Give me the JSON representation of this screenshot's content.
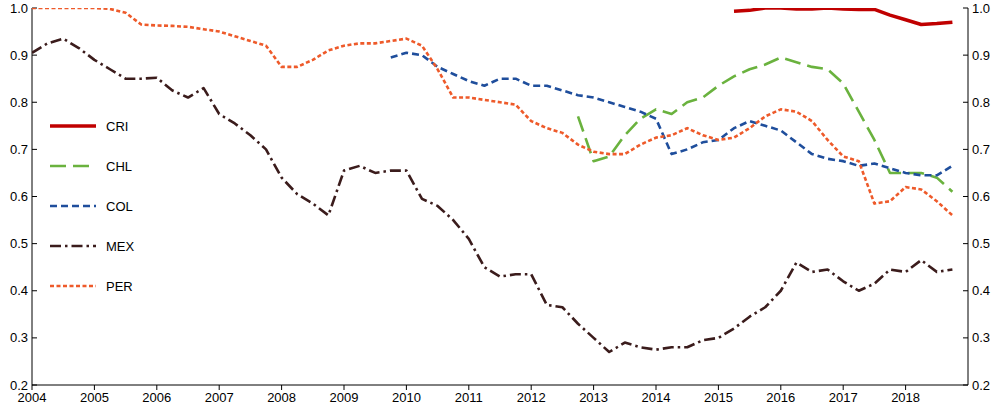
{
  "chart_data": {
    "type": "line",
    "x": [
      2004,
      2004.25,
      2004.5,
      2004.75,
      2005,
      2005.25,
      2005.5,
      2005.75,
      2006,
      2006.25,
      2006.5,
      2006.75,
      2007,
      2007.25,
      2007.5,
      2007.75,
      2008,
      2008.25,
      2008.5,
      2008.75,
      2009,
      2009.25,
      2009.5,
      2009.75,
      2010,
      2010.25,
      2010.5,
      2010.75,
      2011,
      2011.25,
      2011.5,
      2011.75,
      2012,
      2012.25,
      2012.5,
      2012.75,
      2013,
      2013.25,
      2013.5,
      2013.75,
      2014,
      2014.25,
      2014.5,
      2014.75,
      2015,
      2015.25,
      2015.5,
      2015.75,
      2016,
      2016.25,
      2016.5,
      2016.75,
      2017,
      2017.25,
      2017.5,
      2017.75,
      2018,
      2018.25,
      2018.5,
      2018.75
    ],
    "series": [
      {
        "name": "CRI",
        "color": "#c00000",
        "line_style": "solid",
        "values": [
          null,
          null,
          null,
          null,
          null,
          null,
          null,
          null,
          null,
          null,
          null,
          null,
          null,
          null,
          null,
          null,
          null,
          null,
          null,
          null,
          null,
          null,
          null,
          null,
          null,
          null,
          null,
          null,
          null,
          null,
          null,
          null,
          null,
          null,
          null,
          null,
          null,
          null,
          null,
          null,
          null,
          null,
          null,
          null,
          null,
          0.993,
          0.995,
          1,
          1,
          0.998,
          0.998,
          1,
          0.998,
          0.997,
          0.997,
          0.985,
          0.975,
          0.965,
          0.967,
          0.97
        ]
      },
      {
        "name": "CHL",
        "color": "#6ab23e",
        "line_style": "long-dash",
        "values": [
          null,
          null,
          null,
          null,
          null,
          null,
          null,
          null,
          null,
          null,
          null,
          null,
          null,
          null,
          null,
          null,
          null,
          null,
          null,
          null,
          null,
          null,
          null,
          null,
          null,
          null,
          null,
          null,
          null,
          null,
          null,
          null,
          null,
          null,
          null,
          0.77,
          0.675,
          0.685,
          0.73,
          0.765,
          0.785,
          0.775,
          0.8,
          0.81,
          0.835,
          0.855,
          0.87,
          0.88,
          0.895,
          0.885,
          0.875,
          0.87,
          0.84,
          0.78,
          0.72,
          0.65,
          0.65,
          0.65,
          0.64,
          0.61
        ]
      },
      {
        "name": "COL",
        "color": "#1f4e9c",
        "line_style": "dash",
        "values": [
          null,
          null,
          null,
          null,
          null,
          null,
          null,
          null,
          null,
          null,
          null,
          null,
          null,
          null,
          null,
          null,
          null,
          null,
          null,
          null,
          null,
          null,
          null,
          0.895,
          0.905,
          0.9,
          0.875,
          0.86,
          0.845,
          0.835,
          0.85,
          0.85,
          0.835,
          0.835,
          0.825,
          0.815,
          0.81,
          0.8,
          0.79,
          0.78,
          0.765,
          0.69,
          0.7,
          0.715,
          0.72,
          0.745,
          0.76,
          0.75,
          0.74,
          0.715,
          0.69,
          0.68,
          0.675,
          0.665,
          0.67,
          0.66,
          0.65,
          0.645,
          0.645,
          0.665
        ]
      },
      {
        "name": "MEX",
        "color": "#3b1c1c",
        "line_style": "dash-dot",
        "values": [
          0.905,
          0.925,
          0.935,
          0.915,
          0.89,
          0.87,
          0.85,
          0.85,
          0.852,
          0.825,
          0.81,
          0.83,
          0.775,
          0.755,
          0.73,
          0.7,
          0.64,
          0.605,
          0.585,
          0.56,
          0.655,
          0.665,
          0.65,
          0.655,
          0.655,
          0.595,
          0.58,
          0.55,
          0.51,
          0.45,
          0.43,
          0.435,
          0.435,
          0.37,
          0.365,
          0.33,
          0.3,
          0.27,
          0.29,
          0.28,
          0.275,
          0.28,
          0.28,
          0.295,
          0.3,
          0.32,
          0.345,
          0.365,
          0.4,
          0.46,
          0.44,
          0.445,
          0.42,
          0.4,
          0.415,
          0.445,
          0.44,
          0.465,
          0.44,
          0.445
        ]
      },
      {
        "name": "PER",
        "color": "#ee5a2a",
        "line_style": "short-dash",
        "values": [
          1,
          1,
          1,
          1,
          1,
          0.998,
          0.99,
          0.965,
          0.963,
          0.962,
          0.96,
          0.955,
          0.95,
          0.94,
          0.93,
          0.92,
          0.875,
          0.875,
          0.89,
          0.91,
          0.92,
          0.925,
          0.925,
          0.93,
          0.935,
          0.92,
          0.87,
          0.81,
          0.81,
          0.805,
          0.8,
          0.795,
          0.76,
          0.745,
          0.735,
          0.71,
          0.695,
          0.69,
          0.69,
          0.71,
          0.725,
          0.73,
          0.745,
          0.73,
          0.72,
          0.725,
          0.745,
          0.77,
          0.785,
          0.78,
          0.76,
          0.72,
          0.685,
          0.675,
          0.585,
          0.59,
          0.62,
          0.615,
          0.59,
          0.56
        ]
      }
    ],
    "xlim": [
      2004,
      2019
    ],
    "xticks": [
      2004,
      2005,
      2006,
      2007,
      2008,
      2009,
      2010,
      2011,
      2012,
      2013,
      2014,
      2015,
      2016,
      2017,
      2018
    ],
    "ylim": [
      0.2,
      1
    ],
    "yticks": [
      {
        "value": 1,
        "label": "1.0"
      },
      0.9,
      0.8,
      0.7,
      0.6,
      0.5,
      0.4,
      0.3,
      0.2
    ],
    "y2lim": [
      0.2,
      1
    ],
    "y2ticks": [
      {
        "value": 1,
        "label": "1.0"
      },
      0.9,
      0.8,
      0.7,
      0.6,
      0.5,
      0.4,
      0.3,
      0.2
    ],
    "grid": false,
    "legend": "left"
  }
}
